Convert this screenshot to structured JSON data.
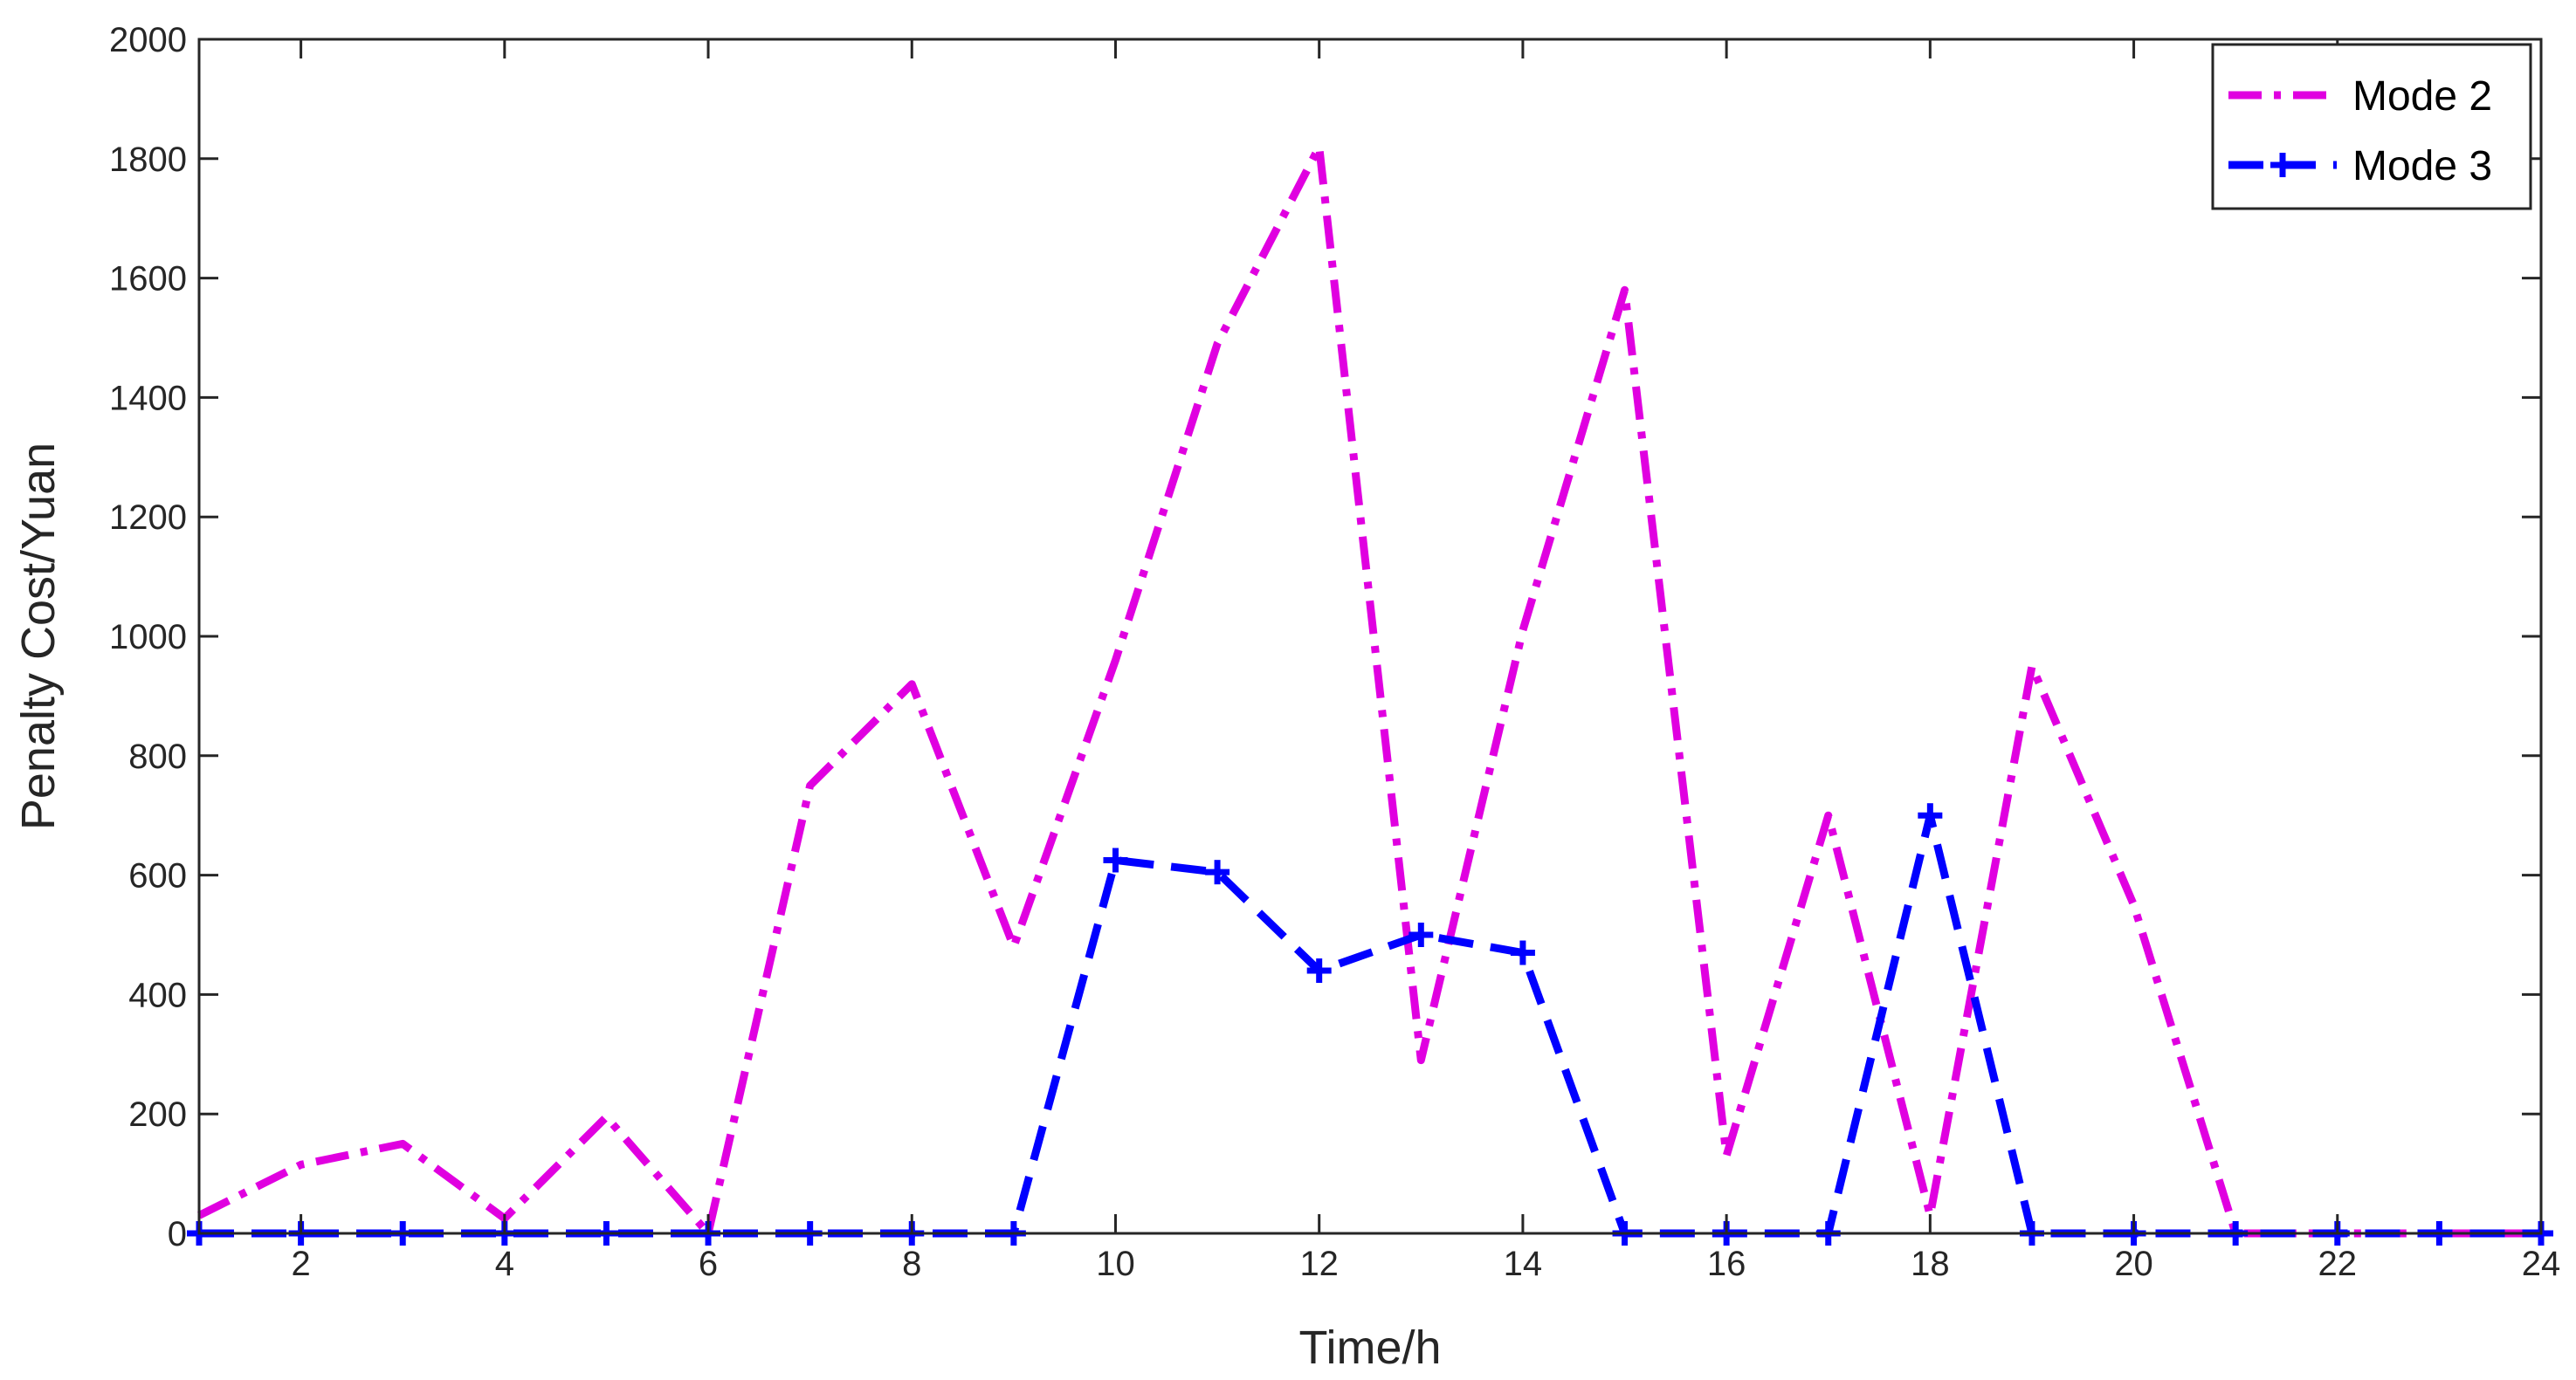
{
  "chart_data": {
    "type": "line",
    "xlabel": "Time/h",
    "ylabel": "Penalty Cost/Yuan",
    "xlim": [
      1,
      24
    ],
    "ylim": [
      0,
      2000
    ],
    "xticks": [
      2,
      4,
      6,
      8,
      10,
      12,
      14,
      16,
      18,
      20,
      22,
      24
    ],
    "yticks": [
      0,
      200,
      400,
      600,
      800,
      1000,
      1200,
      1400,
      1600,
      1800,
      2000
    ],
    "grid": false,
    "legend_position": "top-right",
    "x": [
      1,
      2,
      3,
      4,
      5,
      6,
      7,
      8,
      9,
      10,
      11,
      12,
      13,
      14,
      15,
      16,
      17,
      18,
      19,
      20,
      21,
      22,
      23,
      24
    ],
    "series": [
      {
        "name": "Mode 2",
        "color": "#e000e0",
        "line_style": "dash-dot",
        "marker": "none",
        "values": [
          30,
          115,
          150,
          25,
          195,
          0,
          750,
          920,
          480,
          960,
          1490,
          1820,
          290,
          1010,
          1580,
          130,
          700,
          30,
          950,
          550,
          0,
          0,
          0,
          0
        ]
      },
      {
        "name": "Mode 3",
        "color": "#0000ff",
        "line_style": "dashed",
        "marker": "plus",
        "values": [
          0,
          0,
          0,
          0,
          0,
          0,
          0,
          0,
          0,
          625,
          605,
          440,
          500,
          470,
          0,
          0,
          0,
          700,
          0,
          0,
          0,
          0,
          0,
          0
        ]
      }
    ]
  }
}
